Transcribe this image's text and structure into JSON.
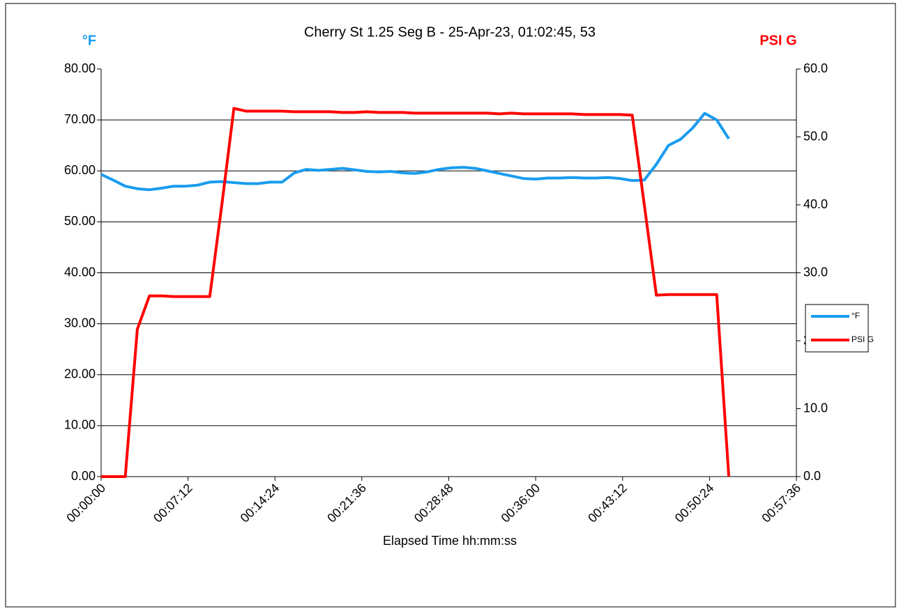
{
  "chart_data": {
    "type": "line",
    "title": "Cherry St 1.25 Seg B - 25-Apr-23, 01:02:45, 53",
    "y_axis_label": "°F",
    "y2_axis_label": "PSI G",
    "x_axis_label": "Elapsed Time hh:mm:ss",
    "x": [
      0,
      60,
      120,
      180,
      240,
      300,
      360,
      420,
      480,
      540,
      600,
      660,
      720,
      780,
      840,
      900,
      960,
      1020,
      1080,
      1140,
      1200,
      1260,
      1320,
      1380,
      1440,
      1500,
      1560,
      1620,
      1680,
      1740,
      1800,
      1860,
      1920,
      1980,
      2040,
      2100,
      2160,
      2220,
      2280,
      2340,
      2400,
      2460,
      2520,
      2580,
      2640,
      2700,
      2760,
      2820,
      2880,
      2940,
      3000,
      3060,
      3120
    ],
    "series": [
      {
        "name": "°F",
        "color": "#1a9cf0",
        "axis": "y",
        "values": [
          59.3,
          58.2,
          57.0,
          56.5,
          56.3,
          56.6,
          57.0,
          57.0,
          57.2,
          57.8,
          57.9,
          57.7,
          57.5,
          57.5,
          57.8,
          57.8,
          59.6,
          60.3,
          60.1,
          60.3,
          60.5,
          60.2,
          59.9,
          59.8,
          59.9,
          59.6,
          59.5,
          59.8,
          60.3,
          60.6,
          60.7,
          60.5,
          60.0,
          59.5,
          59.0,
          58.5,
          58.4,
          58.6,
          58.6,
          58.7,
          58.6,
          58.6,
          58.7,
          58.5,
          58.1,
          58.2,
          61.3,
          65.0,
          66.2,
          68.4,
          71.3,
          70.0,
          66.3
        ]
      },
      {
        "name": "PSI G",
        "color": "#ff0000",
        "axis": "y2",
        "values": [
          0,
          0,
          0,
          21.7,
          26.6,
          26.6,
          26.5,
          26.5,
          26.5,
          26.5,
          40.0,
          54.2,
          53.8,
          53.8,
          53.8,
          53.8,
          53.7,
          53.7,
          53.7,
          53.7,
          53.6,
          53.6,
          53.7,
          53.6,
          53.6,
          53.6,
          53.5,
          53.5,
          53.5,
          53.5,
          53.5,
          53.5,
          53.5,
          53.4,
          53.5,
          53.4,
          53.4,
          53.4,
          53.4,
          53.4,
          53.3,
          53.3,
          53.3,
          53.3,
          53.2,
          40.0,
          26.7,
          26.8,
          26.8,
          26.8,
          26.8,
          26.8,
          0
        ]
      }
    ],
    "xlim": [
      0,
      3456
    ],
    "xticks": [
      {
        "value": 0,
        "label": "00:00:00"
      },
      {
        "value": 432,
        "label": "00:07:12"
      },
      {
        "value": 864,
        "label": "00:14:24"
      },
      {
        "value": 1296,
        "label": "00:21:36"
      },
      {
        "value": 1728,
        "label": "00:28:48"
      },
      {
        "value": 2160,
        "label": "00:36:00"
      },
      {
        "value": 2592,
        "label": "00:43:12"
      },
      {
        "value": 3024,
        "label": "00:50:24"
      },
      {
        "value": 3456,
        "label": "00:57:36"
      }
    ],
    "ylim": [
      0,
      80
    ],
    "yticks": [
      {
        "value": 0,
        "label": "0.00"
      },
      {
        "value": 10,
        "label": "10.00"
      },
      {
        "value": 20,
        "label": "20.00"
      },
      {
        "value": 30,
        "label": "30.00"
      },
      {
        "value": 40,
        "label": "40.00"
      },
      {
        "value": 50,
        "label": "50.00"
      },
      {
        "value": 60,
        "label": "60.00"
      },
      {
        "value": 70,
        "label": "70.00"
      },
      {
        "value": 80,
        "label": "80.00"
      }
    ],
    "y2lim": [
      0,
      60
    ],
    "y2ticks": [
      {
        "value": 0,
        "label": "0.0"
      },
      {
        "value": 10,
        "label": "10.0"
      },
      {
        "value": 20,
        "label": "20.0"
      },
      {
        "value": 30,
        "label": "30.0"
      },
      {
        "value": 40,
        "label": "40.0"
      },
      {
        "value": 50,
        "label": "50.0"
      },
      {
        "value": 60,
        "label": "60.0"
      }
    ],
    "grid": true,
    "legend": "right"
  }
}
